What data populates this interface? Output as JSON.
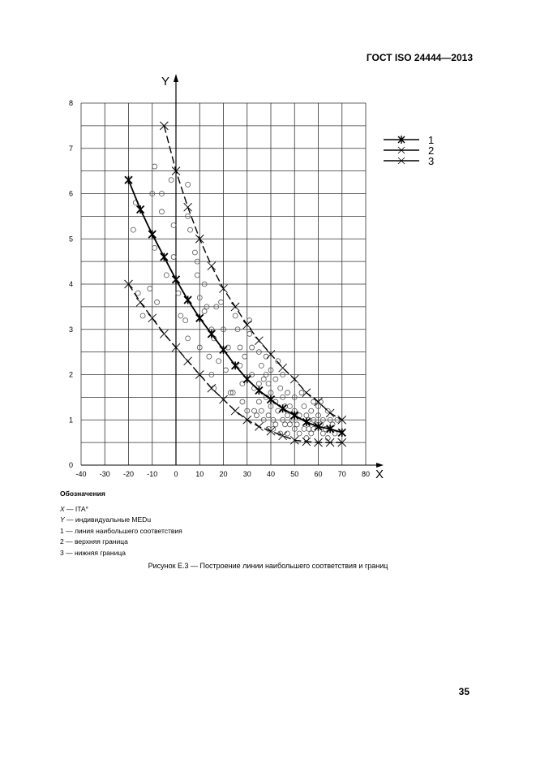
{
  "document": {
    "header": "ГОСТ ISO 24444—2013",
    "page_number": "35",
    "caption": "Рисунок Е.3 — Построение линии наибольшего соответствия и границ"
  },
  "notes": {
    "title": "Обозначения",
    "items": [
      {
        "key": "X",
        "text": " — ITA°"
      },
      {
        "key": "Y",
        "text": " — индивидуальные MEDu"
      },
      {
        "key": "1",
        "text": " — линия наибольшего соответствия"
      },
      {
        "key": "2",
        "text": " — верхняя граница"
      },
      {
        "key": "3",
        "text": " — нижняя граница"
      }
    ]
  },
  "chart_data": {
    "type": "scatter",
    "title": "",
    "xlabel": "X",
    "ylabel": "Y",
    "xlim": [
      -40,
      80
    ],
    "ylim": [
      0,
      8
    ],
    "x_ticks": [
      -40,
      -30,
      -20,
      -10,
      0,
      10,
      20,
      30,
      40,
      50,
      60,
      70,
      80
    ],
    "y_ticks": [
      0,
      1,
      2,
      3,
      4,
      5,
      6,
      7,
      8
    ],
    "grid": true,
    "grid_minor_y": 0.5,
    "legend_position": "right",
    "legend": [
      "1",
      "2",
      "3"
    ],
    "series": [
      {
        "name": "1",
        "description": "линия наибольшего соответствия",
        "style": "solid-bold",
        "marker": "asterisk",
        "x": [
          -20,
          -15,
          -10,
          -5,
          0,
          5,
          10,
          15,
          20,
          25,
          30,
          35,
          40,
          45,
          50,
          55,
          60,
          65,
          70
        ],
        "y": [
          6.3,
          5.65,
          5.1,
          4.6,
          4.1,
          3.65,
          3.25,
          2.9,
          2.55,
          2.2,
          1.9,
          1.65,
          1.45,
          1.25,
          1.1,
          0.95,
          0.85,
          0.8,
          0.72
        ]
      },
      {
        "name": "2",
        "description": "верхняя граница",
        "style": "dashed",
        "marker": "x",
        "x": [
          -5,
          0,
          5,
          10,
          15,
          20,
          25,
          30,
          35,
          40,
          45,
          50,
          55,
          60,
          65,
          70
        ],
        "y": [
          7.5,
          6.5,
          5.7,
          5.0,
          4.4,
          3.9,
          3.5,
          3.1,
          2.75,
          2.45,
          2.15,
          1.9,
          1.6,
          1.4,
          1.15,
          1.0
        ]
      },
      {
        "name": "3",
        "description": "нижняя граница",
        "style": "dashed",
        "marker": "x",
        "x": [
          -20,
          -15,
          -10,
          -5,
          0,
          5,
          10,
          15,
          20,
          25,
          30,
          35,
          40,
          45,
          50,
          55,
          60,
          65,
          70
        ],
        "y": [
          4.0,
          3.6,
          3.25,
          2.9,
          2.6,
          2.3,
          2.0,
          1.7,
          1.45,
          1.2,
          1.0,
          0.85,
          0.75,
          0.65,
          0.55,
          0.52,
          0.5,
          0.5,
          0.5
        ]
      },
      {
        "name": "observations",
        "style": "none",
        "marker": "circle",
        "points": [
          [
            -18,
            5.2
          ],
          [
            -17,
            5.8
          ],
          [
            -16,
            3.8
          ],
          [
            -14,
            3.3
          ],
          [
            -11,
            3.9
          ],
          [
            -10,
            6.0
          ],
          [
            -9,
            6.6
          ],
          [
            -9,
            4.8
          ],
          [
            -8,
            3.6
          ],
          [
            -6,
            6.0
          ],
          [
            -6,
            5.6
          ],
          [
            -4,
            4.2
          ],
          [
            -2,
            6.3
          ],
          [
            -1,
            5.3
          ],
          [
            -1,
            4.6
          ],
          [
            1,
            3.8
          ],
          [
            2,
            3.3
          ],
          [
            4,
            3.2
          ],
          [
            5,
            6.2
          ],
          [
            5,
            5.5
          ],
          [
            6,
            5.2
          ],
          [
            5,
            2.8
          ],
          [
            8,
            4.7
          ],
          [
            9,
            4.2
          ],
          [
            9,
            4.5
          ],
          [
            10,
            3.7
          ],
          [
            10,
            2.6
          ],
          [
            12,
            4.0
          ],
          [
            12,
            3.4
          ],
          [
            13,
            3.5
          ],
          [
            14,
            2.4
          ],
          [
            15,
            3.0
          ],
          [
            15,
            2.0
          ],
          [
            16,
            2.8
          ],
          [
            16,
            1.7
          ],
          [
            17,
            3.5
          ],
          [
            18,
            2.3
          ],
          [
            19,
            3.6
          ],
          [
            20,
            3.0
          ],
          [
            21,
            2.1
          ],
          [
            22,
            2.6
          ],
          [
            23,
            1.6
          ],
          [
            24,
            1.6
          ],
          [
            25,
            3.3
          ],
          [
            26,
            3.0
          ],
          [
            27,
            2.6
          ],
          [
            27,
            2.2
          ],
          [
            28,
            1.8
          ],
          [
            28,
            1.4
          ],
          [
            29,
            2.4
          ],
          [
            30,
            1.2
          ],
          [
            31,
            3.2
          ],
          [
            31,
            2.9
          ],
          [
            32,
            2.6
          ],
          [
            32,
            2.0
          ],
          [
            33,
            1.7
          ],
          [
            33,
            1.2
          ],
          [
            34,
            1.1
          ],
          [
            35,
            2.5
          ],
          [
            35,
            1.8
          ],
          [
            35,
            1.4
          ],
          [
            36,
            2.2
          ],
          [
            36,
            1.2
          ],
          [
            37,
            1.9
          ],
          [
            37,
            1.0
          ],
          [
            38,
            2.4
          ],
          [
            38,
            2.0
          ],
          [
            38,
            1.5
          ],
          [
            39,
            1.8
          ],
          [
            39,
            1.1
          ],
          [
            39,
            0.8
          ],
          [
            40,
            2.1
          ],
          [
            40,
            1.6
          ],
          [
            40,
            1.3
          ],
          [
            41,
            1.0
          ],
          [
            41,
            0.8
          ],
          [
            42,
            1.9
          ],
          [
            42,
            1.4
          ],
          [
            42,
            0.9
          ],
          [
            43,
            2.3
          ],
          [
            43,
            1.2
          ],
          [
            44,
            1.7
          ],
          [
            44,
            0.7
          ],
          [
            45,
            2.0
          ],
          [
            45,
            1.5
          ],
          [
            45,
            1.0
          ],
          [
            46,
            1.3
          ],
          [
            46,
            0.9
          ],
          [
            47,
            1.6
          ],
          [
            47,
            1.1
          ],
          [
            47,
            0.7
          ],
          [
            48,
            1.3
          ],
          [
            48,
            0.9
          ],
          [
            49,
            1.0
          ],
          [
            50,
            1.5
          ],
          [
            50,
            1.2
          ],
          [
            50,
            0.8
          ],
          [
            51,
            0.9
          ],
          [
            52,
            1.1
          ],
          [
            52,
            0.7
          ],
          [
            53,
            1.6
          ],
          [
            54,
            1.3
          ],
          [
            54,
            0.8
          ],
          [
            55,
            1.1
          ],
          [
            55,
            0.6
          ],
          [
            56,
            1.0
          ],
          [
            56,
            0.8
          ],
          [
            57,
            1.2
          ],
          [
            57,
            0.7
          ],
          [
            58,
            1.4
          ],
          [
            58,
            1.0
          ],
          [
            58,
            0.8
          ],
          [
            59,
            0.9
          ],
          [
            60,
            1.3
          ],
          [
            60,
            1.1
          ],
          [
            61,
            1.4
          ],
          [
            61,
            0.9
          ],
          [
            62,
            1.0
          ],
          [
            62,
            0.7
          ],
          [
            63,
            0.8
          ],
          [
            64,
            1.2
          ],
          [
            64,
            0.6
          ],
          [
            65,
            1.0
          ],
          [
            66,
            0.9
          ],
          [
            67,
            0.7
          ],
          [
            68,
            1.0
          ]
        ]
      }
    ]
  }
}
